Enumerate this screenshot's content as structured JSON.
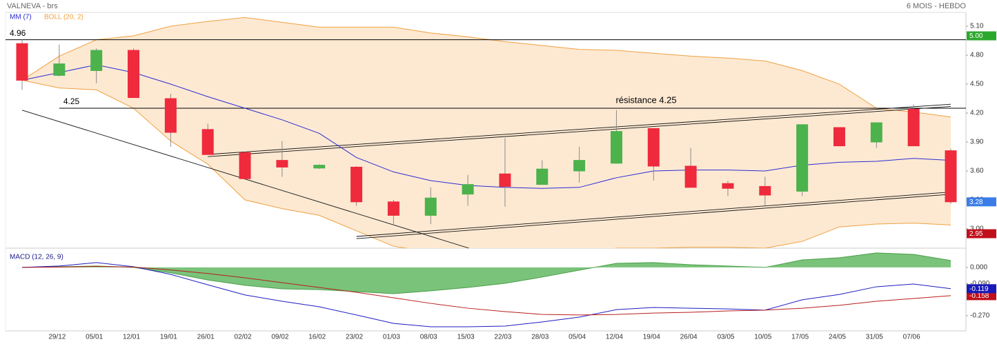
{
  "header": {
    "title": "VALNEVA - brs",
    "period": "6 MOIS - HEBDO"
  },
  "chart_data": [
    {
      "type": "candlestick",
      "categories": [
        null,
        "29/12",
        "05/01",
        "12/01",
        "19/01",
        "26/01",
        "02/02",
        "09/02",
        "16/02",
        "23/02",
        "01/03",
        "08/03",
        "15/03",
        "22/03",
        "28/03",
        "05/04",
        "12/04",
        "19/04",
        "26/04",
        "03/05",
        "10/05",
        "17/05",
        "24/05",
        "31/05",
        "07/06",
        null
      ],
      "open": [
        4.92,
        4.59,
        4.64,
        4.85,
        4.35,
        4.03,
        3.79,
        3.71,
        3.63,
        3.64,
        3.28,
        3.14,
        3.36,
        3.57,
        3.46,
        3.6,
        3.68,
        4.04,
        3.65,
        3.47,
        3.44,
        3.39,
        4.05,
        3.9,
        4.24,
        3.81
      ],
      "high": [
        4.96,
        4.91,
        4.87,
        4.87,
        4.4,
        4.09,
        3.8,
        3.91,
        3.67,
        3.65,
        3.3,
        3.43,
        3.56,
        3.94,
        3.71,
        3.85,
        4.23,
        4.04,
        3.84,
        3.5,
        3.54,
        4.08,
        4.05,
        4.1,
        4.29,
        3.83
      ],
      "low": [
        4.44,
        4.58,
        4.51,
        4.36,
        3.85,
        3.77,
        3.52,
        3.54,
        3.62,
        3.24,
        3.05,
        3.05,
        3.24,
        3.23,
        3.46,
        3.48,
        3.68,
        3.5,
        3.43,
        3.34,
        3.23,
        3.34,
        3.86,
        3.84,
        3.86,
        3.26
      ],
      "close": [
        4.54,
        4.71,
        4.85,
        4.36,
        4.0,
        3.77,
        3.52,
        3.64,
        3.66,
        3.28,
        3.14,
        3.32,
        3.46,
        3.44,
        3.62,
        3.71,
        4.01,
        3.65,
        3.43,
        3.42,
        3.35,
        4.08,
        3.86,
        4.1,
        3.86,
        3.28
      ],
      "up_color": "#4cb24c",
      "down_color": "#ee2a3c",
      "series": [
        {
          "name": "MM (7)",
          "color": "#2b2bd4",
          "values": [
            4.54,
            4.62,
            4.7,
            4.62,
            4.5,
            4.37,
            4.25,
            4.13,
            3.99,
            3.74,
            3.59,
            3.5,
            3.45,
            3.43,
            3.42,
            3.43,
            3.53,
            3.6,
            3.61,
            3.61,
            3.6,
            3.66,
            3.69,
            3.7,
            3.73,
            3.71
          ]
        },
        {
          "name": "BOLL (20, 2)",
          "color": "#f0a040",
          "fill": "#fde9d2",
          "upper": [
            4.54,
            4.79,
            4.96,
            5.0,
            5.1,
            5.15,
            5.19,
            5.14,
            5.09,
            5.09,
            5.09,
            5.03,
            4.99,
            4.94,
            4.9,
            4.86,
            4.85,
            4.82,
            4.79,
            4.77,
            4.74,
            4.64,
            4.5,
            4.25,
            4.21,
            4.16
          ],
          "lower": [
            4.54,
            4.46,
            4.44,
            4.25,
            3.91,
            3.67,
            3.3,
            3.21,
            3.14,
            2.98,
            2.82,
            2.76,
            2.72,
            2.7,
            2.72,
            2.74,
            2.8,
            2.8,
            2.81,
            2.81,
            2.8,
            2.87,
            3.02,
            3.05,
            3.06,
            3.04
          ]
        }
      ],
      "ylim": [
        2.8,
        5.243
      ],
      "yticks": [
        {
          "value": 3.0,
          "label": "3.00"
        },
        {
          "value": 3.3,
          "label": "3.30"
        },
        {
          "value": 3.6,
          "label": "3.60"
        },
        {
          "value": 3.9,
          "label": "3.90"
        },
        {
          "value": 4.2,
          "label": "4.20"
        },
        {
          "value": 4.5,
          "label": "4.50"
        },
        {
          "value": 4.8,
          "label": "4.80"
        },
        {
          "value": 5.1,
          "label": "5.10"
        }
      ],
      "grid": false,
      "hlines": [
        {
          "value": 4.96,
          "from": 0
        },
        {
          "value": 4.25,
          "from": 1
        }
      ],
      "annotations": [
        "résistance 4.25"
      ],
      "trendlines": [
        {
          "x": [
            0,
            12.03
          ],
          "y": [
            4.23,
            2.8
          ],
          "style": "single"
        },
        {
          "x": [
            5,
            25
          ],
          "y": [
            3.76,
            4.28
          ],
          "style": "double"
        },
        {
          "x": [
            9,
            25
          ],
          "y": [
            2.91,
            3.37
          ],
          "style": "double"
        }
      ],
      "badges": [
        {
          "value": 5.0,
          "label": "5.00",
          "color": "#2da82d"
        },
        {
          "value": 3.28,
          "label": "3.28",
          "color": "#3b7de8"
        },
        {
          "value": 2.95,
          "label": "2.95",
          "color": "#c0101c"
        }
      ]
    },
    {
      "type": "macd",
      "title": "MACD (12, 26, 9)",
      "histogram": {
        "color": "#6cbc6c",
        "values": [
          0.0,
          0.004,
          0.008,
          0.0,
          -0.03,
          -0.07,
          -0.1,
          -0.12,
          -0.124,
          -0.135,
          -0.147,
          -0.131,
          -0.112,
          -0.089,
          -0.054,
          -0.015,
          0.023,
          0.027,
          0.015,
          0.008,
          0.0,
          0.042,
          0.054,
          0.081,
          0.073,
          0.039
        ]
      },
      "series": [
        {
          "color": "#1c1cc0",
          "values": [
            0.0,
            0.008,
            0.027,
            0.004,
            -0.039,
            -0.097,
            -0.154,
            -0.189,
            -0.22,
            -0.266,
            -0.313,
            -0.332,
            -0.332,
            -0.328,
            -0.305,
            -0.278,
            -0.236,
            -0.224,
            -0.228,
            -0.232,
            -0.239,
            -0.181,
            -0.151,
            -0.108,
            -0.093,
            -0.119
          ]
        },
        {
          "color": "#b81c1c",
          "values": [
            0.0,
            0.002,
            0.006,
            0.002,
            -0.014,
            -0.034,
            -0.058,
            -0.085,
            -0.112,
            -0.139,
            -0.17,
            -0.201,
            -0.228,
            -0.247,
            -0.263,
            -0.266,
            -0.263,
            -0.255,
            -0.251,
            -0.243,
            -0.239,
            -0.228,
            -0.212,
            -0.189,
            -0.174,
            -0.158
          ]
        }
      ],
      "ylim": [
        -0.355,
        0.1
      ],
      "yticks": [
        {
          "value": 0.0,
          "label": "0.000"
        },
        {
          "value": -0.09,
          "label": "-0.090"
        },
        {
          "value": -0.27,
          "label": "-0.270"
        }
      ],
      "badges": [
        {
          "value": -0.158,
          "label": "-0.158",
          "color": "#c0101c"
        },
        {
          "value": -0.119,
          "label": "-0.119",
          "color": "#1a1ab8"
        }
      ]
    }
  ]
}
